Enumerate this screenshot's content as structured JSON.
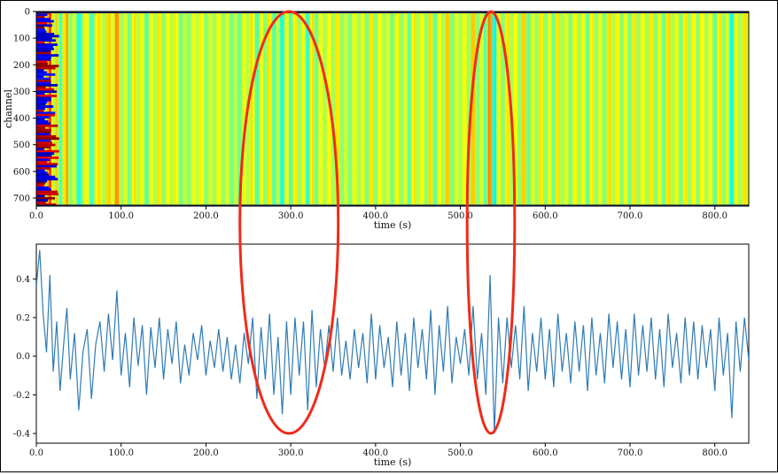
{
  "chart_data": [
    {
      "type": "heatmap",
      "title": "",
      "xlabel": "time (s)",
      "ylabel": "channel",
      "xlim": [
        0,
        840
      ],
      "ylim": [
        730,
        0
      ],
      "x_ticks": [
        "0.0",
        "100.0",
        "200.0",
        "300.0",
        "400.0",
        "500.0",
        "600.0",
        "700.0",
        "800.0"
      ],
      "y_ticks": [
        "0",
        "100",
        "200",
        "300",
        "400",
        "500",
        "600",
        "700"
      ],
      "colormap": "jet",
      "grid": false,
      "legend": "none",
      "column_value_series": "same as lower chart; each column coloured by its value (low = blue, high = yellow/red)"
    },
    {
      "type": "line",
      "title": "",
      "xlabel": "time (s)",
      "ylabel": "",
      "xlim": [
        0,
        840
      ],
      "ylim": [
        -0.45,
        0.58
      ],
      "x_ticks": [
        "0.0",
        "100.0",
        "200.0",
        "300.0",
        "400.0",
        "500.0",
        "600.0",
        "700.0",
        "800.0"
      ],
      "y_ticks": [
        "-0.4",
        "-0.2",
        "0.0",
        "0.2",
        "0.4"
      ],
      "line_color": "#2f7bb6",
      "grid": false,
      "legend": "none",
      "series": [
        {
          "points": [
            [
              0,
              0.36
            ],
            [
              4,
              0.55
            ],
            [
              8,
              0.22
            ],
            [
              12,
              0.02
            ],
            [
              16,
              0.42
            ],
            [
              20,
              -0.08
            ],
            [
              24,
              0.18
            ],
            [
              28,
              -0.18
            ],
            [
              32,
              0.05
            ],
            [
              36,
              0.25
            ],
            [
              40,
              -0.12
            ],
            [
              45,
              0.12
            ],
            [
              50,
              -0.28
            ],
            [
              55,
              0.02
            ],
            [
              60,
              0.14
            ],
            [
              65,
              -0.22
            ],
            [
              70,
              0.06
            ],
            [
              75,
              0.18
            ],
            [
              80,
              -0.08
            ],
            [
              85,
              0.22
            ],
            [
              90,
              -0.02
            ],
            [
              95,
              0.34
            ],
            [
              100,
              -0.1
            ],
            [
              105,
              0.12
            ],
            [
              110,
              -0.16
            ],
            [
              115,
              0.2
            ],
            [
              120,
              -0.05
            ],
            [
              125,
              0.16
            ],
            [
              130,
              -0.2
            ],
            [
              135,
              0.15
            ],
            [
              140,
              -0.06
            ],
            [
              145,
              0.2
            ],
            [
              150,
              -0.12
            ],
            [
              155,
              0.14
            ],
            [
              160,
              -0.04
            ],
            [
              165,
              0.18
            ],
            [
              170,
              -0.14
            ],
            [
              175,
              0.06
            ],
            [
              180,
              -0.1
            ],
            [
              185,
              0.12
            ],
            [
              190,
              -0.02
            ],
            [
              195,
              0.16
            ],
            [
              200,
              -0.1
            ],
            [
              205,
              0.08
            ],
            [
              210,
              -0.06
            ],
            [
              215,
              0.14
            ],
            [
              220,
              -0.08
            ],
            [
              225,
              0.1
            ],
            [
              230,
              -0.12
            ],
            [
              235,
              0.06
            ],
            [
              240,
              -0.14
            ],
            [
              245,
              0.12
            ],
            [
              250,
              -0.04
            ],
            [
              255,
              0.2
            ],
            [
              260,
              -0.22
            ],
            [
              265,
              0.15
            ],
            [
              270,
              -0.12
            ],
            [
              275,
              0.22
            ],
            [
              280,
              -0.2
            ],
            [
              285,
              0.1
            ],
            [
              290,
              -0.3
            ],
            [
              295,
              0.18
            ],
            [
              300,
              -0.2
            ],
            [
              305,
              0.2
            ],
            [
              310,
              -0.1
            ],
            [
              315,
              0.18
            ],
            [
              320,
              -0.28
            ],
            [
              325,
              0.24
            ],
            [
              330,
              -0.16
            ],
            [
              335,
              0.14
            ],
            [
              340,
              -0.06
            ],
            [
              345,
              0.16
            ],
            [
              350,
              -0.08
            ],
            [
              355,
              0.2
            ],
            [
              360,
              -0.1
            ],
            [
              365,
              0.08
            ],
            [
              370,
              -0.12
            ],
            [
              375,
              0.14
            ],
            [
              380,
              -0.06
            ],
            [
              385,
              0.12
            ],
            [
              390,
              -0.14
            ],
            [
              395,
              0.22
            ],
            [
              400,
              -0.12
            ],
            [
              405,
              0.16
            ],
            [
              410,
              -0.06
            ],
            [
              415,
              0.1
            ],
            [
              420,
              -0.16
            ],
            [
              425,
              0.18
            ],
            [
              430,
              -0.1
            ],
            [
              435,
              0.12
            ],
            [
              440,
              -0.18
            ],
            [
              445,
              0.2
            ],
            [
              450,
              -0.06
            ],
            [
              455,
              0.14
            ],
            [
              460,
              -0.12
            ],
            [
              465,
              0.24
            ],
            [
              470,
              -0.2
            ],
            [
              475,
              0.16
            ],
            [
              480,
              -0.08
            ],
            [
              485,
              0.26
            ],
            [
              490,
              -0.14
            ],
            [
              495,
              0.1
            ],
            [
              500,
              -0.04
            ],
            [
              505,
              0.14
            ],
            [
              510,
              -0.1
            ],
            [
              515,
              0.26
            ],
            [
              520,
              -0.12
            ],
            [
              525,
              0.12
            ],
            [
              530,
              -0.2
            ],
            [
              535,
              0.42
            ],
            [
              540,
              -0.4
            ],
            [
              545,
              0.2
            ],
            [
              550,
              -0.14
            ],
            [
              555,
              0.2
            ],
            [
              560,
              -0.06
            ],
            [
              565,
              0.16
            ],
            [
              570,
              -0.12
            ],
            [
              575,
              0.26
            ],
            [
              580,
              -0.18
            ],
            [
              585,
              0.12
            ],
            [
              590,
              -0.08
            ],
            [
              595,
              0.2
            ],
            [
              600,
              -0.12
            ],
            [
              605,
              0.14
            ],
            [
              610,
              -0.16
            ],
            [
              615,
              0.22
            ],
            [
              620,
              -0.08
            ],
            [
              625,
              0.12
            ],
            [
              630,
              -0.14
            ],
            [
              635,
              0.18
            ],
            [
              640,
              -0.08
            ],
            [
              645,
              0.16
            ],
            [
              650,
              -0.18
            ],
            [
              655,
              0.2
            ],
            [
              660,
              -0.1
            ],
            [
              665,
              0.12
            ],
            [
              670,
              -0.14
            ],
            [
              675,
              0.22
            ],
            [
              680,
              -0.06
            ],
            [
              685,
              0.18
            ],
            [
              690,
              -0.12
            ],
            [
              695,
              0.14
            ],
            [
              700,
              -0.16
            ],
            [
              705,
              0.22
            ],
            [
              710,
              -0.1
            ],
            [
              715,
              0.16
            ],
            [
              720,
              -0.08
            ],
            [
              725,
              0.2
            ],
            [
              730,
              -0.12
            ],
            [
              735,
              0.14
            ],
            [
              740,
              -0.16
            ],
            [
              745,
              0.22
            ],
            [
              750,
              -0.06
            ],
            [
              755,
              0.12
            ],
            [
              760,
              -0.14
            ],
            [
              765,
              0.2
            ],
            [
              770,
              -0.1
            ],
            [
              775,
              0.18
            ],
            [
              780,
              -0.12
            ],
            [
              785,
              0.16
            ],
            [
              790,
              -0.06
            ],
            [
              795,
              0.14
            ],
            [
              800,
              -0.18
            ],
            [
              805,
              0.2
            ],
            [
              810,
              -0.1
            ],
            [
              815,
              0.12
            ],
            [
              820,
              -0.32
            ],
            [
              825,
              0.18
            ],
            [
              830,
              -0.08
            ],
            [
              835,
              0.2
            ],
            [
              840,
              -0.02
            ]
          ]
        }
      ],
      "annotations": [
        {
          "shape": "ellipse",
          "color": "#ee2b1a",
          "center_x": 298,
          "x_half_width": 58
        },
        {
          "shape": "ellipse",
          "color": "#ee2b1a",
          "center_x": 536,
          "x_half_width": 28
        }
      ]
    }
  ]
}
